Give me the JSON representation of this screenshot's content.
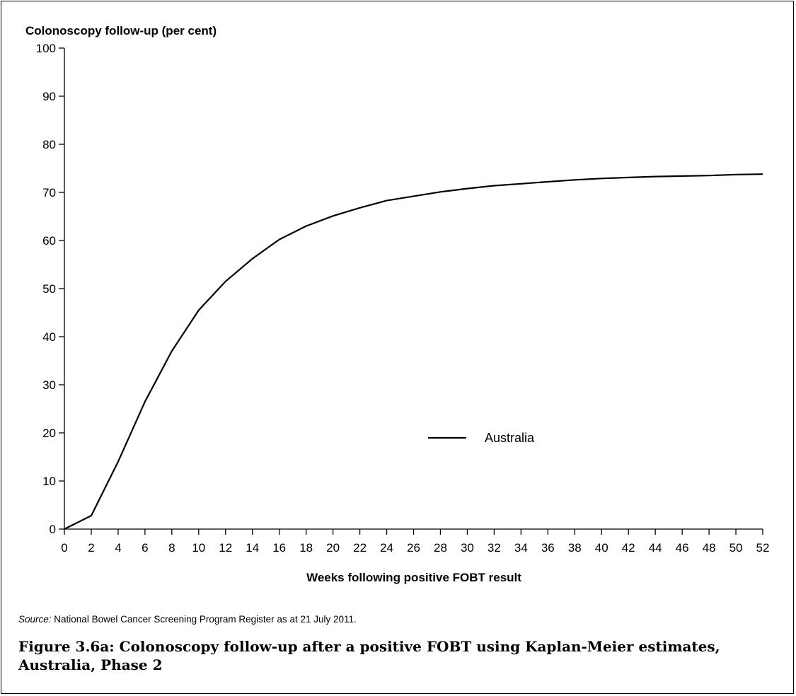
{
  "figure": {
    "source_prefix": "Source:",
    "source_text": " National Bowel Cancer Screening Program Register as at 21 July 2011.",
    "caption": "Figure 3.6a: Colonoscopy follow-up after a positive FOBT using Kaplan-Meier estimates, Australia, Phase 2"
  },
  "chart_data": {
    "type": "line",
    "title": "",
    "ylabel": "Colonoscopy follow-up (per cent)",
    "xlabel": "Weeks following positive FOBT result",
    "xlim": [
      0,
      52
    ],
    "ylim": [
      0,
      100
    ],
    "xticks": [
      0,
      2,
      4,
      6,
      8,
      10,
      12,
      14,
      16,
      18,
      20,
      22,
      24,
      26,
      28,
      30,
      32,
      34,
      36,
      38,
      40,
      42,
      44,
      46,
      48,
      50,
      52
    ],
    "yticks": [
      0,
      10,
      20,
      30,
      40,
      50,
      60,
      70,
      80,
      90,
      100
    ],
    "grid": false,
    "legend_position": "center-right",
    "series": [
      {
        "name": "Australia",
        "color": "#000000",
        "x": [
          0,
          2,
          4,
          6,
          8,
          10,
          12,
          14,
          16,
          18,
          20,
          22,
          24,
          26,
          28,
          30,
          32,
          34,
          36,
          38,
          40,
          42,
          44,
          46,
          48,
          50,
          52
        ],
        "y": [
          0,
          2.8,
          14,
          26.5,
          37,
          45.5,
          51.5,
          56.2,
          60.2,
          63,
          65.1,
          66.8,
          68.3,
          69.2,
          70.1,
          70.8,
          71.4,
          71.8,
          72.2,
          72.6,
          72.9,
          73.1,
          73.3,
          73.4,
          73.5,
          73.7,
          73.8
        ]
      }
    ]
  }
}
